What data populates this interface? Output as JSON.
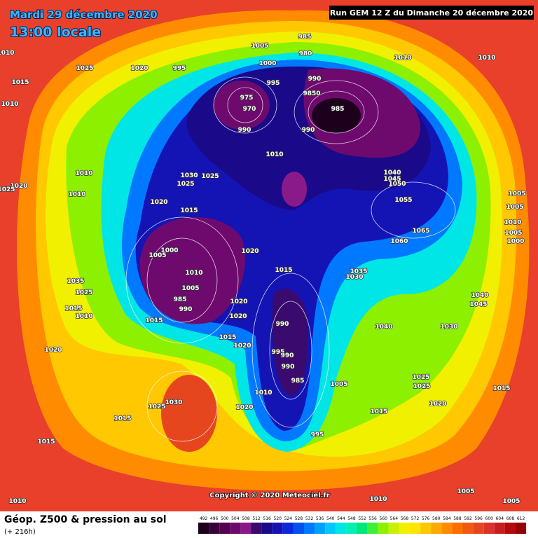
{
  "header": {
    "date": "Mardi 29 décembre 2020",
    "time": "13:00 locale",
    "run": "Run GEM 12 Z du Dimanche 20 décembre 2020"
  },
  "copyright": "Copyright © 2020 Meteociel.fr",
  "footer": {
    "title": "Géop. Z500 & pression au sol",
    "subtitle": "(+ 216h)"
  },
  "legend": {
    "values": [
      492,
      496,
      500,
      504,
      508,
      512,
      516,
      520,
      524,
      528,
      532,
      536,
      540,
      544,
      548,
      552,
      556,
      560,
      564,
      568,
      572,
      576,
      580,
      584,
      588,
      592,
      596,
      600,
      604,
      608,
      612
    ],
    "colors": [
      "#1c001c",
      "#3a003a",
      "#55004f",
      "#6e0a6e",
      "#8a1a8a",
      "#3a0a6e",
      "#1a0a8a",
      "#1414b4",
      "#0a28dc",
      "#0050f0",
      "#0078ff",
      "#00a0ff",
      "#00c8ff",
      "#00e6e6",
      "#00f0b4",
      "#00e678",
      "#3cf03c",
      "#8cf000",
      "#c8f000",
      "#f0f000",
      "#ffe600",
      "#ffc800",
      "#ffaa00",
      "#ff8c00",
      "#ff6e00",
      "#f05a14",
      "#e6461e",
      "#dc3228",
      "#c81e1e",
      "#b40a0a",
      "#960000"
    ]
  },
  "isobar_labels": [
    "1010",
    "1010",
    "1025",
    "1020",
    "1015",
    "995",
    "1005",
    "1000",
    "985",
    "980",
    "995",
    "990",
    "9850",
    "975",
    "970",
    "985",
    "990",
    "990",
    "1010",
    "1010",
    "1010",
    "1040",
    "1045",
    "1050",
    "1055",
    "1005",
    "1005",
    "1010",
    "1005",
    "1000",
    "1065",
    "1060",
    "1030",
    "1025",
    "1025",
    "1010",
    "1010",
    "1020",
    "1025",
    "1020",
    "1015",
    "1020",
    "1000",
    "1005",
    "1010",
    "1015",
    "1035",
    "1030",
    "1040",
    "1045",
    "1005",
    "985",
    "990",
    "1020",
    "1020",
    "1015",
    "1035",
    "1025",
    "1015",
    "1010",
    "990",
    "1040",
    "1030",
    "1015",
    "1020",
    "995",
    "990",
    "990",
    "985",
    "1005",
    "1010",
    "1025",
    "1025",
    "1015",
    "1030",
    "1025",
    "1020",
    "1020",
    "1015",
    "1015",
    "995",
    "1015",
    "1020",
    "1005",
    "1010",
    "1010",
    "1005"
  ]
}
